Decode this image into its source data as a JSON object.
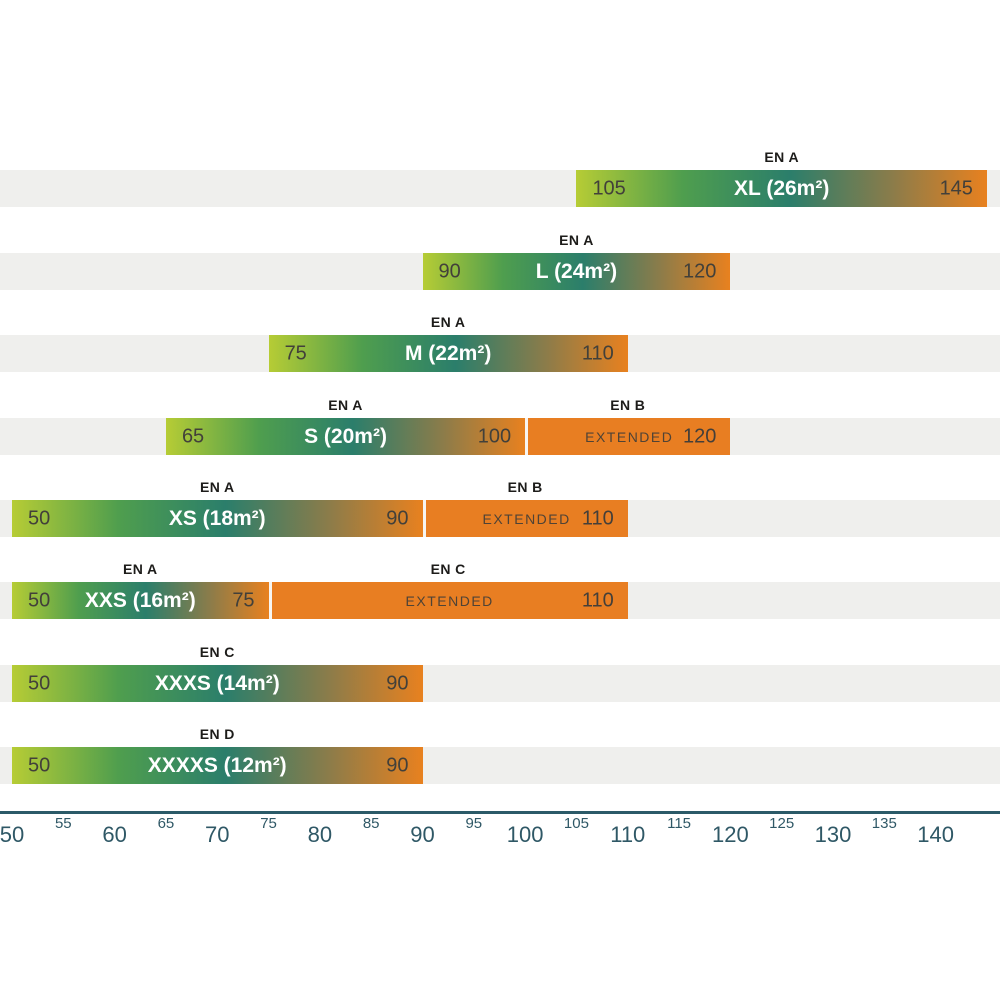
{
  "chart_data": {
    "type": "bar",
    "variant": "horizontal-weight-range",
    "title": "",
    "xlabel": "",
    "ylabel": "",
    "grid": false,
    "legend": false,
    "x_axis": {
      "min": 50,
      "max": 145,
      "major_ticks": [
        50,
        60,
        70,
        80,
        90,
        100,
        110,
        120,
        130,
        140
      ],
      "minor_ticks": [
        55,
        65,
        75,
        85,
        95,
        105,
        115,
        125,
        135
      ]
    },
    "rows": [
      {
        "size_label": "XL (26m²)",
        "cert": "EN A",
        "min": 105,
        "max": 145
      },
      {
        "size_label": "L (24m²)",
        "cert": "EN A",
        "min": 90,
        "max": 120
      },
      {
        "size_label": "M (22m²)",
        "cert": "EN A",
        "min": 75,
        "max": 110
      },
      {
        "size_label": "S (20m²)",
        "cert": "EN A",
        "min": 65,
        "max": 100,
        "extended": {
          "cert": "EN B",
          "label": "EXTENDED",
          "max": 120
        }
      },
      {
        "size_label": "XS (18m²)",
        "cert": "EN A",
        "min": 50,
        "max": 90,
        "extended": {
          "cert": "EN B",
          "label": "EXTENDED",
          "max": 110
        }
      },
      {
        "size_label": "XXS (16m²)",
        "cert": "EN A",
        "min": 50,
        "max": 75,
        "extended": {
          "cert": "EN C",
          "label": "EXTENDED",
          "max": 110
        }
      },
      {
        "size_label": "XXXS (14m²)",
        "cert": "EN C",
        "min": 50,
        "max": 90
      },
      {
        "size_label": "XXXXS (12m²)",
        "cert": "EN D",
        "min": 50,
        "max": 90
      }
    ]
  },
  "colors": {
    "gradient_stops": [
      "#b6cc35",
      "#4f9e4e",
      "#2b7e6b",
      "#8b7c4a",
      "#e8811f"
    ],
    "extended_orange": "#e87e22",
    "row_stripe": "#efefed",
    "axis": "#2b5a68",
    "tick_text": "#2f5866",
    "value_text": "#42403a",
    "extended_text": "#4f4336",
    "cert_text": "#1d1c1a",
    "size_text": "#ffffff"
  }
}
